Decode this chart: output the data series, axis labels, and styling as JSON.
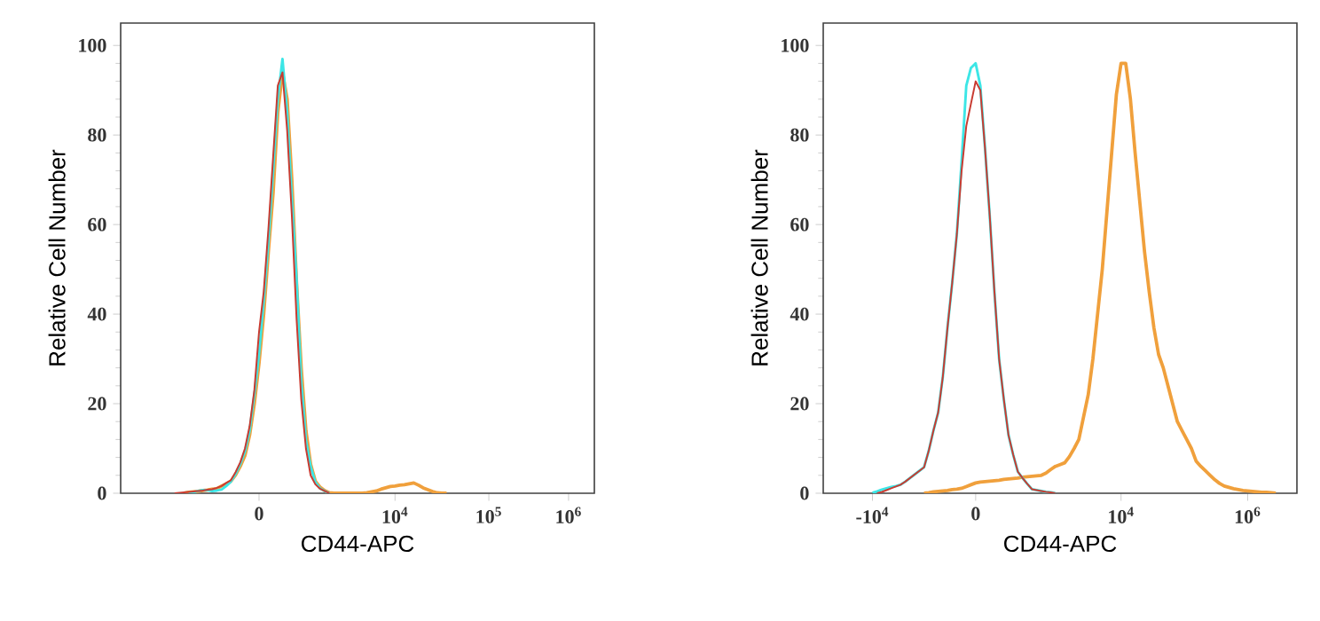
{
  "chart_data": [
    {
      "type": "line",
      "xlabel": "CD44-APC",
      "ylabel": "Relative Cell Number",
      "ylim": [
        0,
        105
      ],
      "yticks": [
        0,
        20,
        40,
        60,
        80,
        100
      ],
      "marker": "none",
      "line_style": "solid",
      "categories": [
        null,
        null,
        null,
        null,
        null,
        null,
        null,
        null,
        null,
        null,
        null,
        null,
        null,
        null,
        null,
        null,
        null,
        null,
        null,
        null,
        null,
        null,
        null,
        null,
        null,
        null,
        null,
        null,
        null,
        "0",
        null,
        null,
        null,
        null,
        null,
        null,
        null,
        null,
        null,
        null,
        null,
        null,
        null,
        null,
        null,
        null,
        null,
        null,
        null,
        null,
        null,
        null,
        null,
        null,
        null,
        null,
        null,
        null,
        "10$^{4}$",
        null,
        null,
        null,
        null,
        null,
        null,
        null,
        null,
        null,
        null,
        null,
        null,
        null,
        null,
        null,
        null,
        null,
        null,
        null,
        "10$^{5}$",
        null,
        null,
        null,
        null,
        null,
        null,
        null,
        null,
        null,
        null,
        null,
        null,
        null,
        null,
        null,
        null,
        "10$^{6}$",
        null,
        null,
        null,
        null,
        null
      ],
      "series": [
        {
          "color": "#c83c32",
          "values": [
            null,
            null,
            null,
            null,
            null,
            null,
            null,
            null,
            null,
            null,
            null,
            0,
            0.1,
            0.2,
            0.3,
            0.4,
            0.5,
            0.6,
            0.8,
            0.9,
            1.2,
            1.6,
            2.3,
            2.9,
            4.7,
            6.9,
            10,
            15,
            23,
            36,
            45,
            59,
            75,
            91,
            94,
            81,
            62,
            39,
            21,
            10,
            4,
            2,
            1,
            0.5,
            0,
            null,
            null,
            null,
            null,
            null,
            null,
            null,
            null,
            null,
            null,
            null,
            null,
            null,
            null,
            null,
            null,
            null,
            null,
            null,
            null,
            null,
            null,
            null,
            null,
            null,
            null,
            null,
            null,
            null,
            null,
            null,
            null,
            null,
            null,
            null,
            null,
            null,
            null,
            null,
            null,
            null,
            null,
            null,
            null,
            null,
            null,
            null,
            null,
            null,
            null,
            null,
            null,
            null,
            null,
            null,
            null
          ]
        },
        {
          "color": "#3ce6e6",
          "values": [
            null,
            null,
            null,
            null,
            null,
            null,
            null,
            null,
            null,
            null,
            null,
            null,
            null,
            null,
            0,
            0.2,
            0.5,
            0.7,
            0.7,
            0.5,
            0.6,
            0.8,
            1.6,
            2.6,
            4.3,
            6.5,
            9.3,
            14,
            22,
            31,
            43,
            56,
            72,
            88,
            97,
            85,
            66,
            48,
            25,
            12,
            6,
            2.5,
            1.1,
            0.5,
            0,
            null,
            null,
            null,
            null,
            null,
            null,
            null,
            null,
            null,
            null,
            null,
            null,
            null,
            null,
            null,
            null,
            null,
            null,
            null,
            null,
            null,
            null,
            null,
            null,
            null,
            null,
            null,
            null,
            null,
            null,
            null,
            null,
            null,
            null,
            null,
            null,
            null,
            null,
            null,
            null,
            null,
            null,
            null,
            null,
            null,
            null,
            null,
            null,
            null,
            null,
            null,
            null,
            null,
            null,
            null,
            null
          ]
        },
        {
          "color": "#f0a03c",
          "values": [
            null,
            null,
            null,
            null,
            null,
            null,
            null,
            null,
            null,
            null,
            null,
            null,
            null,
            0,
            0.2,
            0.3,
            0.4,
            0.6,
            0.7,
            0.9,
            1.0,
            1.6,
            2.1,
            2.7,
            4.1,
            6,
            8.4,
            13,
            20,
            29,
            40,
            54,
            67,
            85,
            94,
            88,
            70,
            47,
            28,
            14,
            6.5,
            2.7,
            1.4,
            0.6,
            0.1,
            0,
            0,
            0,
            0,
            0,
            0,
            0,
            0.1,
            0.3,
            0.5,
            0.9,
            1.2,
            1.5,
            1.6,
            1.8,
            1.9,
            2.1,
            2.3,
            1.8,
            1.2,
            0.8,
            0.4,
            0.1,
            0,
            0,
            null,
            null,
            null,
            null,
            null,
            null,
            null,
            null,
            null,
            null,
            null,
            null,
            null,
            null,
            null,
            null,
            null,
            null,
            null,
            null,
            null,
            null,
            null,
            null,
            null,
            null,
            null,
            null,
            null,
            null,
            null
          ]
        }
      ]
    },
    {
      "type": "line",
      "xlabel": "CD44-APC",
      "ylabel": "Relative Cell Number",
      "ylim": [
        0,
        105
      ],
      "yticks": [
        0,
        20,
        40,
        60,
        80,
        100
      ],
      "marker": "none",
      "line_style": "solid",
      "categories": [
        null,
        null,
        null,
        null,
        null,
        null,
        null,
        null,
        null,
        null,
        "-10$^{4}$",
        null,
        null,
        null,
        null,
        null,
        null,
        null,
        null,
        null,
        null,
        null,
        null,
        null,
        null,
        null,
        null,
        null,
        null,
        null,
        null,
        null,
        "0",
        null,
        null,
        null,
        null,
        null,
        null,
        null,
        null,
        null,
        null,
        null,
        null,
        null,
        null,
        null,
        null,
        null,
        null,
        null,
        null,
        null,
        null,
        null,
        null,
        null,
        null,
        null,
        null,
        null,
        null,
        "10$^{4}$",
        null,
        null,
        null,
        null,
        null,
        null,
        null,
        null,
        null,
        null,
        null,
        null,
        null,
        null,
        null,
        null,
        null,
        null,
        null,
        null,
        null,
        null,
        null,
        null,
        null,
        null,
        "10$^{6}$",
        null,
        null,
        null,
        null,
        null,
        null,
        null,
        null,
        null,
        null
      ],
      "series": [
        {
          "color": "#c83c32",
          "values": [
            null,
            null,
            null,
            null,
            null,
            null,
            null,
            null,
            null,
            null,
            null,
            0,
            0.3,
            0.7,
            1.1,
            1.5,
            1.9,
            2.6,
            3.4,
            4.2,
            5,
            5.8,
            9.5,
            14,
            18,
            26,
            37,
            47,
            58,
            72,
            82,
            87,
            92,
            90,
            77,
            62,
            45,
            30,
            21,
            13,
            8.6,
            4.8,
            3.4,
            2.1,
            0.9,
            0.7,
            0.5,
            0.3,
            0.2,
            0,
            null,
            null,
            null,
            null,
            null,
            null,
            null,
            null,
            null,
            null,
            null,
            null,
            null,
            null,
            null,
            null,
            null,
            null,
            null,
            null,
            null,
            null,
            null,
            null,
            null,
            null,
            null,
            null,
            null,
            null,
            null,
            null,
            null,
            null,
            null,
            null,
            null,
            null,
            null,
            null,
            null,
            null,
            null,
            null,
            null,
            null,
            null,
            null,
            null,
            null,
            null
          ]
        },
        {
          "color": "#3ce6e6",
          "values": [
            null,
            null,
            null,
            null,
            null,
            null,
            null,
            null,
            null,
            null,
            0.1,
            0.4,
            0.8,
            1.1,
            1.4,
            1.6,
            1.9,
            2.6,
            3.4,
            4.2,
            5,
            5.8,
            9.5,
            14,
            18,
            26,
            37,
            47,
            58,
            74,
            91,
            95,
            96,
            91,
            77,
            62,
            45,
            30,
            21,
            13,
            8.6,
            4.8,
            3.4,
            2.1,
            0.9,
            0.7,
            0.5,
            0.3,
            0.2,
            0,
            null,
            null,
            null,
            null,
            null,
            null,
            null,
            null,
            null,
            null,
            null,
            null,
            null,
            null,
            null,
            null,
            null,
            null,
            null,
            null,
            null,
            null,
            null,
            null,
            null,
            null,
            null,
            null,
            null,
            null,
            null,
            null,
            null,
            null,
            null,
            null,
            null,
            null,
            null,
            null,
            null,
            null,
            null,
            null,
            null,
            null,
            null,
            null,
            null,
            null,
            null
          ]
        },
        {
          "color": "#f0a03c",
          "values": [
            null,
            null,
            null,
            null,
            null,
            null,
            null,
            null,
            null,
            null,
            null,
            null,
            null,
            null,
            null,
            null,
            null,
            null,
            null,
            null,
            null,
            0,
            0.1,
            0.3,
            0.4,
            0.5,
            0.6,
            0.8,
            0.9,
            1.1,
            1.5,
            1.9,
            2.3,
            2.5,
            2.6,
            2.7,
            2.8,
            2.9,
            3.1,
            3.2,
            3.3,
            3.4,
            3.6,
            3.7,
            3.8,
            3.9,
            4,
            4.5,
            5.3,
            6,
            6.4,
            6.8,
            8.2,
            10,
            12,
            17,
            22,
            30,
            40,
            50,
            63,
            76,
            89,
            96,
            96,
            88,
            76,
            65,
            54,
            45,
            37,
            31,
            28,
            24,
            20,
            16,
            14,
            12,
            10,
            7.2,
            6,
            5,
            4,
            3,
            2.2,
            1.6,
            1.3,
            1,
            0.8,
            0.6,
            0.5,
            0.4,
            0.3,
            0.2,
            0.2,
            0.1,
            0,
            null,
            null,
            null,
            null
          ]
        }
      ]
    }
  ]
}
